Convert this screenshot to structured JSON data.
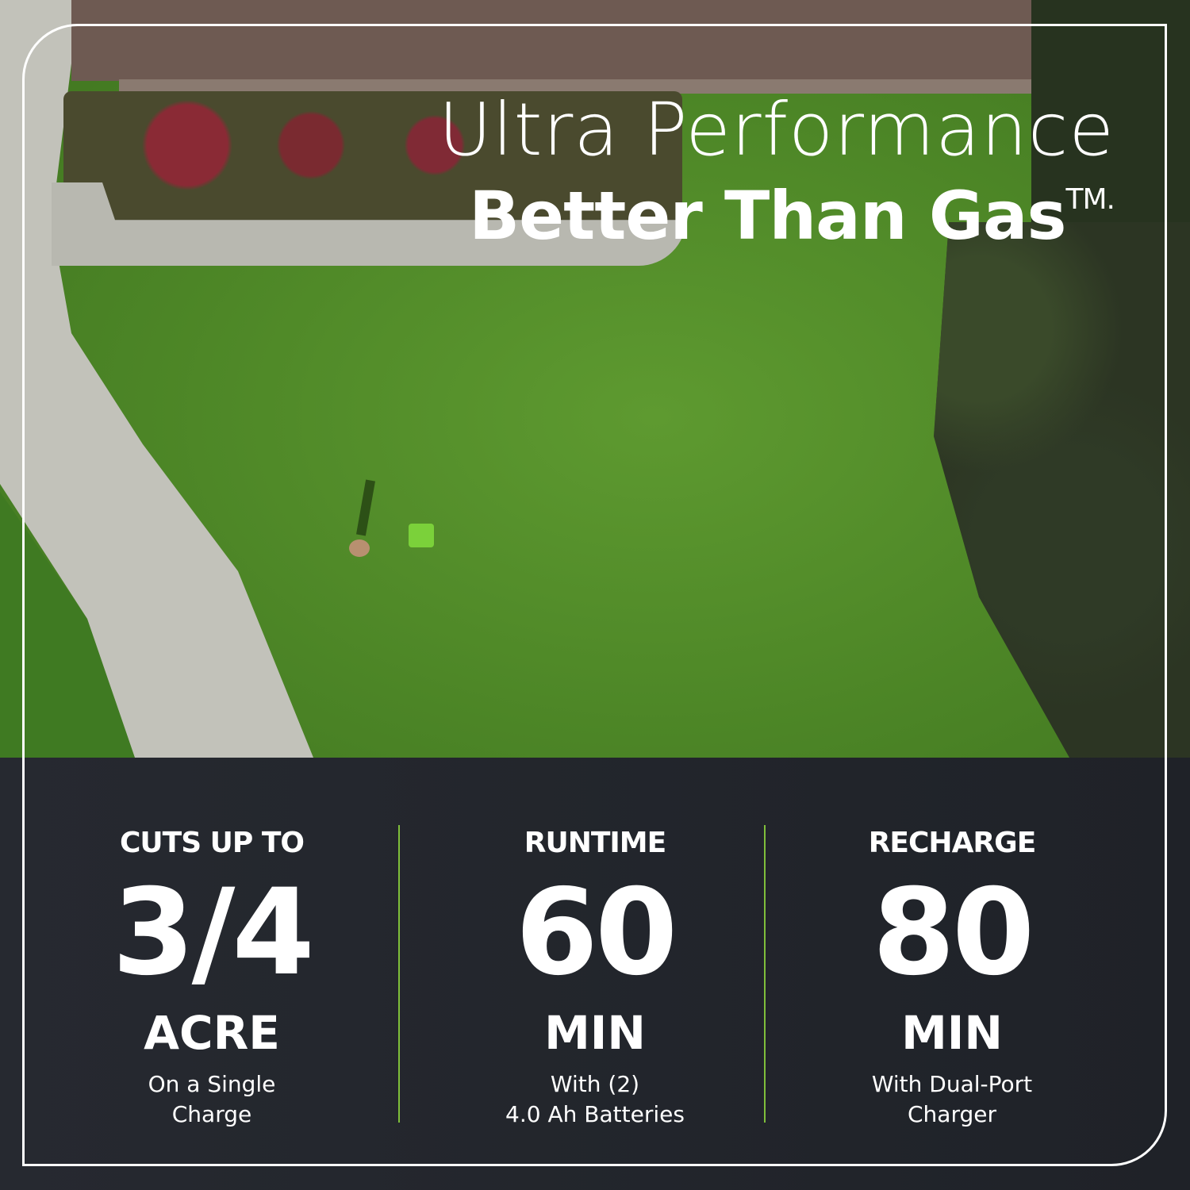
{
  "headline": {
    "line1": "Ultra Performance",
    "line2": "Better Than Gas",
    "trademark": "TM."
  },
  "stats": [
    {
      "label": "CUTS UP TO",
      "value": "3/4",
      "unit": "ACRE",
      "desc1": "On a Single",
      "desc2": "Charge"
    },
    {
      "label": "RUNTIME",
      "value": "60",
      "unit": "MIN",
      "desc1": "With (2)",
      "desc2": "4.0 Ah Batteries"
    },
    {
      "label": "RECHARGE",
      "value": "80",
      "unit": "MIN",
      "desc1": "With Dual-Port",
      "desc2": "Charger"
    }
  ],
  "colors": {
    "panel": "#22252b",
    "divider": "#7fbf3a",
    "text": "#ffffff"
  }
}
